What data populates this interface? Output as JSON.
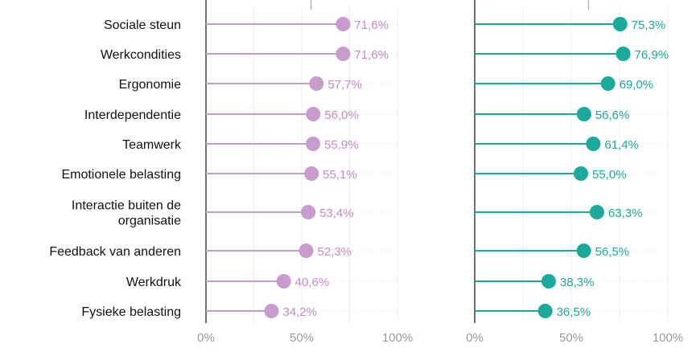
{
  "chart_data": [
    {
      "type": "dot",
      "categories": [
        "Sociale steun",
        "Werkcondities",
        "Ergonomie",
        "Interdependentie",
        "Teamwerk",
        "Emotionele belasting",
        "Interactie buiten de organisatie",
        "Feedback van anderen",
        "Werkdruk",
        "Fysieke belasting"
      ],
      "series": [
        {
          "values": [
            71.6,
            71.6,
            57.7,
            56.0,
            55.9,
            55.1,
            53.4,
            52.3,
            40.6,
            34.2
          ]
        }
      ],
      "value_labels": [
        "71,6%",
        "71,6%",
        "57,7%",
        "56,0%",
        "55,9%",
        "55,1%",
        "53,4%",
        "52,3%",
        "40,6%",
        "34,2%"
      ],
      "xlim": [
        0,
        100
      ],
      "ticks": [
        "0%",
        "50%",
        "100%"
      ],
      "color": "#c79bcb",
      "label_color": "#c38ac6",
      "grid": true
    },
    {
      "type": "dot",
      "categories": [
        "Sociale steun",
        "Werkcondities",
        "Ergonomie",
        "Interdependentie",
        "Teamwerk",
        "Emotionele belasting",
        "Interactie buiten de organisatie",
        "Feedback van anderen",
        "Werkdruk",
        "Fysieke belasting"
      ],
      "series": [
        {
          "values": [
            75.3,
            76.9,
            69.0,
            56.6,
            61.4,
            55.0,
            63.3,
            56.5,
            38.3,
            36.5
          ]
        }
      ],
      "value_labels": [
        "75,3%",
        "76,9%",
        "69,0%",
        "56,6%",
        "61,4%",
        "55,0%",
        "63,3%",
        "56,5%",
        "38,3%",
        "36,5%"
      ],
      "xlim": [
        0,
        100
      ],
      "ticks": [
        "0%",
        "50%",
        "100%"
      ],
      "color": "#1aa99a",
      "label_color": "#1aa99a",
      "grid": true
    }
  ],
  "category_label_lines": [
    [
      "Sociale steun"
    ],
    [
      "Werkcondities"
    ],
    [
      "Ergonomie"
    ],
    [
      "Interdependentie"
    ],
    [
      "Teamwerk"
    ],
    [
      "Emotionele belasting"
    ],
    [
      "Interactie buiten de",
      "organisatie"
    ],
    [
      "Feedback van anderen"
    ],
    [
      "Werkdruk"
    ],
    [
      "Fysieke belasting"
    ]
  ]
}
